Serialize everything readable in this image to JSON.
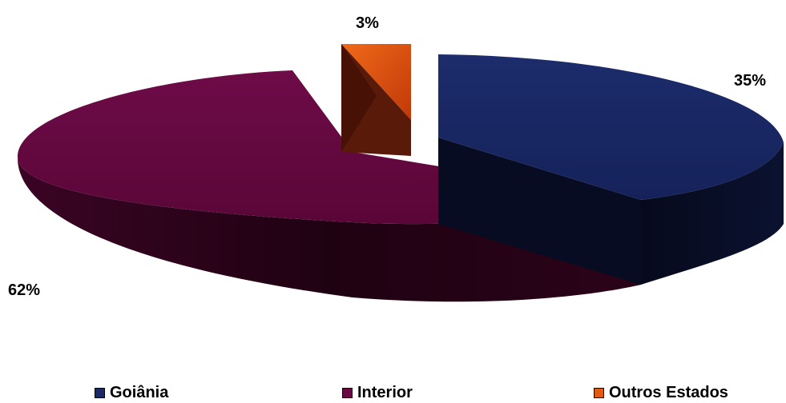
{
  "chart_data": {
    "type": "pie",
    "title": "",
    "style": "3d-exploded",
    "slices": [
      {
        "label": "Goiânia",
        "value": 35,
        "display": "35%",
        "color": "#1b2a66"
      },
      {
        "label": "Interior",
        "value": 62,
        "display": "62%",
        "color": "#6a0a45"
      },
      {
        "label": "Outros Estados",
        "value": 3,
        "display": "3%",
        "color": "#e05a10"
      }
    ],
    "legend_position": "bottom"
  }
}
